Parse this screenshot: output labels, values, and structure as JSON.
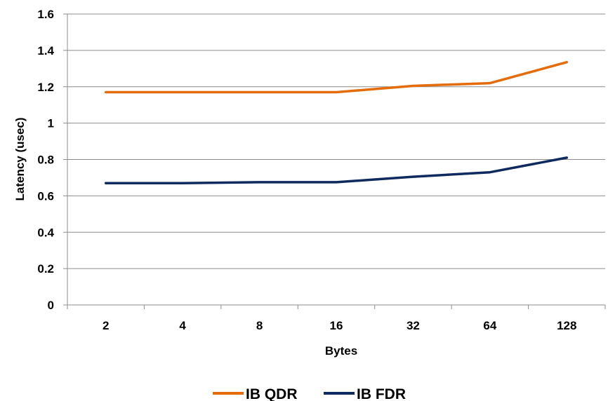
{
  "chart_data": {
    "type": "line",
    "title": "",
    "xlabel": "Bytes",
    "ylabel": "Latency (usec)",
    "categories": [
      "2",
      "4",
      "8",
      "16",
      "32",
      "64",
      "128"
    ],
    "ylim": [
      0,
      1.6
    ],
    "yticks": [
      "0",
      "0.2",
      "0.4",
      "0.6",
      "0.8",
      "1",
      "1.2",
      "1.4",
      "1.6"
    ],
    "grid": true,
    "legend_position": "bottom",
    "series": [
      {
        "name": "IB QDR",
        "color": "#e46c0a",
        "values": [
          1.17,
          1.17,
          1.17,
          1.17,
          1.205,
          1.22,
          1.335
        ]
      },
      {
        "name": "IB FDR",
        "color": "#0f2a5e",
        "values": [
          0.67,
          0.67,
          0.675,
          0.675,
          0.705,
          0.73,
          0.81
        ]
      }
    ]
  }
}
